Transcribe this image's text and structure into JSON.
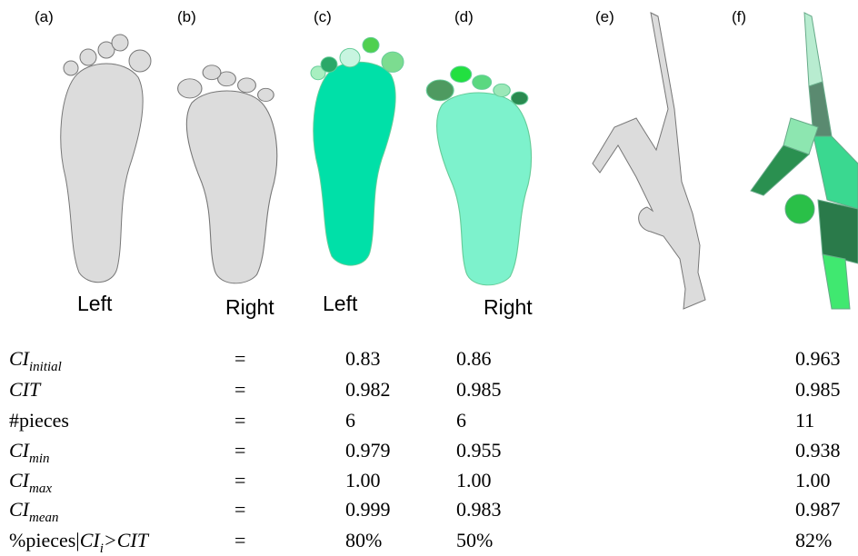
{
  "panels": [
    "(a)",
    "(b)",
    "(c)",
    "(d)",
    "(e)",
    "(f)"
  ],
  "captions": [
    "Left",
    "Right",
    "Left",
    "Right"
  ],
  "table": {
    "rows": [
      {
        "label": [
          {
            "text": "CI",
            "style": "italic"
          },
          {
            "text": "initial",
            "style": "sub"
          }
        ],
        "eq": "=",
        "values": [
          "0.83",
          "0.86",
          "0.963"
        ]
      },
      {
        "label": [
          {
            "text": "CIT",
            "style": "italic"
          }
        ],
        "eq": "=",
        "values": [
          "0.982",
          "0.985",
          "0.985"
        ]
      },
      {
        "label": [
          {
            "text": "#pieces",
            "style": "normal"
          }
        ],
        "eq": "=",
        "values": [
          "6",
          "6",
          "11"
        ]
      },
      {
        "label": [
          {
            "text": "CI",
            "style": "italic"
          },
          {
            "text": "min",
            "style": "sub"
          }
        ],
        "eq": "=",
        "values": [
          "0.979",
          "0.955",
          "0.938"
        ]
      },
      {
        "label": [
          {
            "text": "CI",
            "style": "italic"
          },
          {
            "text": "max",
            "style": "sub"
          }
        ],
        "eq": "=",
        "values": [
          "1.00",
          "1.00",
          "1.00"
        ]
      },
      {
        "label": [
          {
            "text": "CI",
            "style": "italic"
          },
          {
            "text": "mean",
            "style": "sub"
          }
        ],
        "eq": "=",
        "values": [
          "0.999",
          "0.983",
          "0.987"
        ]
      },
      {
        "label": [
          {
            "text": "%pieces|",
            "style": "normal"
          },
          {
            "text": "CI",
            "style": "italic"
          },
          {
            "text": "i",
            "style": "sub"
          },
          {
            "text": ">CIT",
            "style": "italic"
          }
        ],
        "eq": "=",
        "values": [
          "80%",
          "50%",
          "82%"
        ]
      }
    ]
  }
}
